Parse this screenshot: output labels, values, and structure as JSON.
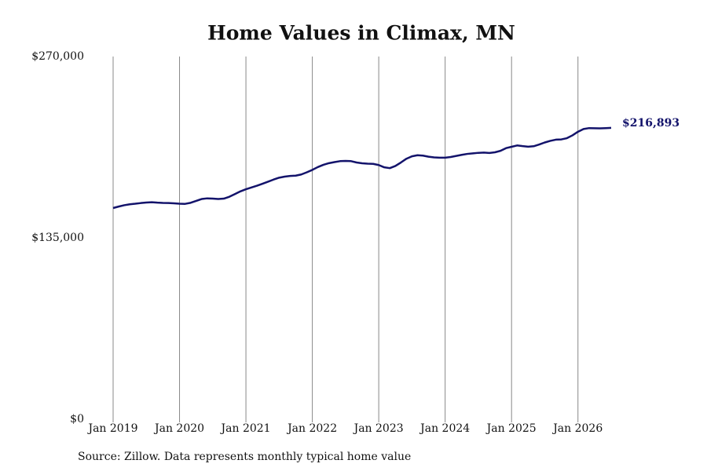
{
  "chart_data": {
    "type": "line",
    "title": "Home Values in Climax, MN",
    "source": "Source: Zillow. Data represents monthly typical home value",
    "x": [
      "2019-01",
      "2019-02",
      "2019-03",
      "2019-04",
      "2019-05",
      "2019-06",
      "2019-07",
      "2019-08",
      "2019-09",
      "2019-10",
      "2019-11",
      "2019-12",
      "2020-01",
      "2020-02",
      "2020-03",
      "2020-04",
      "2020-05",
      "2020-06",
      "2020-07",
      "2020-08",
      "2020-09",
      "2020-10",
      "2020-11",
      "2020-12",
      "2021-01",
      "2021-02",
      "2021-03",
      "2021-04",
      "2021-05",
      "2021-06",
      "2021-07",
      "2021-08",
      "2021-09",
      "2021-10",
      "2021-11",
      "2021-12",
      "2022-01",
      "2022-02",
      "2022-03",
      "2022-04",
      "2022-05",
      "2022-06",
      "2022-07",
      "2022-08",
      "2022-09",
      "2022-10",
      "2022-11",
      "2022-12",
      "2023-01",
      "2023-02",
      "2023-03",
      "2023-04",
      "2023-05",
      "2023-06",
      "2023-07",
      "2023-08",
      "2023-09",
      "2023-10",
      "2023-11",
      "2023-12",
      "2024-01",
      "2024-02",
      "2024-03",
      "2024-04",
      "2024-05",
      "2024-06",
      "2024-07",
      "2024-08",
      "2024-09",
      "2024-10",
      "2024-11",
      "2024-12",
      "2025-01",
      "2025-02",
      "2025-03",
      "2025-04",
      "2025-05",
      "2025-06",
      "2025-07",
      "2025-08",
      "2025-09",
      "2025-10",
      "2025-11",
      "2025-12",
      "2026-01",
      "2026-02",
      "2026-03",
      "2026-04",
      "2026-05",
      "2026-06",
      "2026-07"
    ],
    "series": [
      {
        "name": "Home value",
        "color": "#13136b",
        "values": [
          157200,
          158300,
          159300,
          160000,
          160400,
          160900,
          161300,
          161500,
          161200,
          161000,
          160900,
          160700,
          160400,
          160300,
          161100,
          162500,
          163900,
          164400,
          164200,
          163900,
          164200,
          165600,
          167600,
          169600,
          171200,
          172500,
          173800,
          175300,
          176800,
          178400,
          179800,
          180600,
          181100,
          181300,
          182200,
          183800,
          185600,
          187700,
          189400,
          190600,
          191400,
          192100,
          192300,
          192100,
          191100,
          190500,
          190200,
          190100,
          189200,
          187500,
          186900,
          188500,
          191100,
          193900,
          195700,
          196500,
          196200,
          195400,
          194900,
          194700,
          194700,
          195200,
          196000,
          196800,
          197500,
          197900,
          198300,
          198500,
          198200,
          198700,
          199800,
          201800,
          202800,
          203800,
          203300,
          202900,
          203200,
          204500,
          206000,
          207200,
          208100,
          208300,
          209200,
          211300,
          214000,
          216000,
          216700,
          216600,
          216500,
          216700,
          216893
        ]
      }
    ],
    "annotations": [
      {
        "x": "2026-07",
        "value": 216893,
        "label": "$216,893"
      }
    ],
    "xlim": [
      "2019-01",
      "2026-07"
    ],
    "xticks": [
      {
        "value": "2019-01",
        "label": "Jan 2019"
      },
      {
        "value": "2020-01",
        "label": "Jan 2020"
      },
      {
        "value": "2021-01",
        "label": "Jan 2021"
      },
      {
        "value": "2022-01",
        "label": "Jan 2022"
      },
      {
        "value": "2023-01",
        "label": "Jan 2023"
      },
      {
        "value": "2024-01",
        "label": "Jan 2024"
      },
      {
        "value": "2025-01",
        "label": "Jan 2025"
      },
      {
        "value": "2026-01",
        "label": "Jan 2026"
      }
    ],
    "ylim": [
      0,
      270000
    ],
    "yticks": [
      {
        "value": 0,
        "label": "$0"
      },
      {
        "value": 135000,
        "label": "$135,000"
      },
      {
        "value": 270000,
        "label": "$270,000"
      }
    ],
    "grid": "x"
  }
}
